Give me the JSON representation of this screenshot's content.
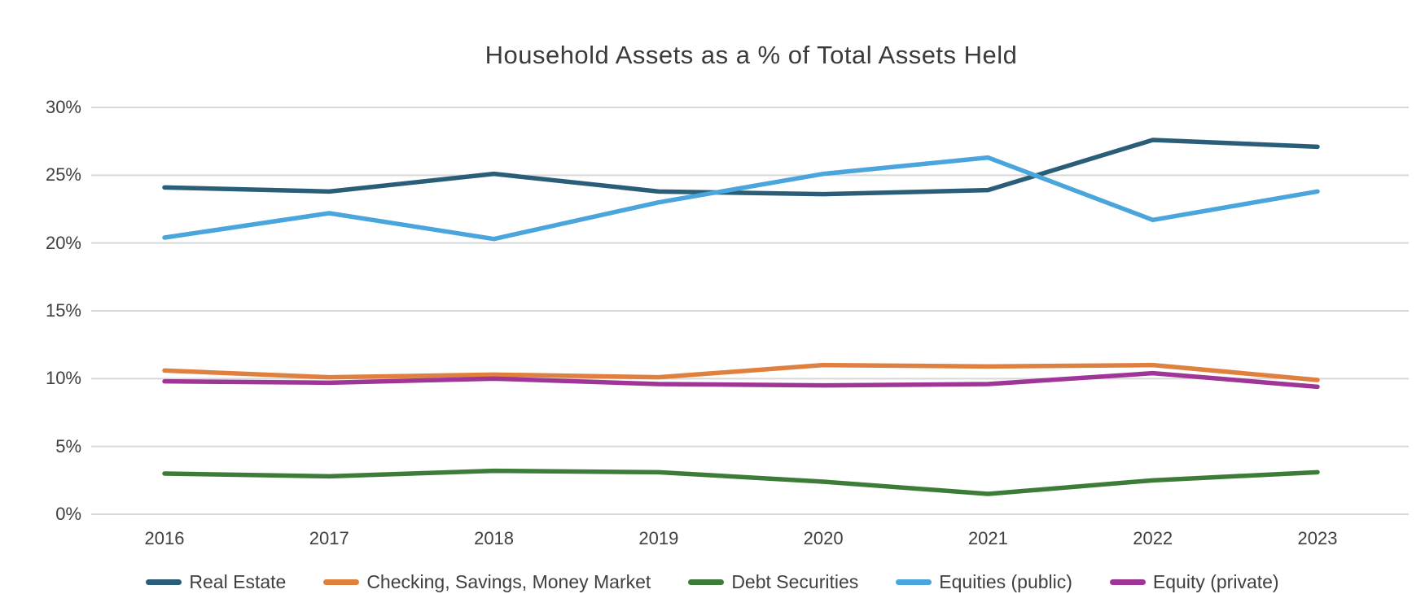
{
  "title": "Household Assets as a % of Total Assets Held",
  "chart_data": {
    "type": "line",
    "title": "Household Assets as a % of Total Assets Held",
    "categories": [
      "2016",
      "2017",
      "2018",
      "2019",
      "2020",
      "2021",
      "2022",
      "2023"
    ],
    "series": [
      {
        "name": "Real Estate",
        "color": "#2A5E78",
        "values": [
          24.1,
          23.8,
          25.1,
          23.8,
          23.6,
          23.9,
          27.6,
          27.1
        ]
      },
      {
        "name": "Checking, Savings, Money Market",
        "color": "#E0803E",
        "values": [
          10.6,
          10.1,
          10.3,
          10.1,
          11.0,
          10.9,
          11.0,
          9.9
        ]
      },
      {
        "name": "Debt Securities",
        "color": "#3C7B38",
        "values": [
          3.0,
          2.8,
          3.2,
          3.1,
          2.4,
          1.5,
          2.5,
          3.1
        ]
      },
      {
        "name": "Equities (public)",
        "color": "#4AA5DC",
        "values": [
          20.4,
          22.2,
          20.3,
          23.0,
          25.1,
          26.3,
          21.7,
          23.8
        ]
      },
      {
        "name": "Equity (private)",
        "color": "#9F3597",
        "values": [
          9.8,
          9.7,
          10.0,
          9.6,
          9.5,
          9.6,
          10.4,
          9.4
        ]
      }
    ],
    "xlabel": "",
    "ylabel": "",
    "ylim": [
      0,
      30
    ],
    "y_tick_values": [
      0,
      5,
      10,
      15,
      20,
      25,
      30
    ],
    "y_tick_labels": [
      "0%",
      "5%",
      "10%",
      "15%",
      "20%",
      "25%",
      "30%"
    ],
    "grid": true,
    "legend_position": "bottom",
    "styles": {
      "grid_color": "#D8D8D8",
      "text_color": "#3F3F3F",
      "background": "#FFFFFF"
    }
  }
}
